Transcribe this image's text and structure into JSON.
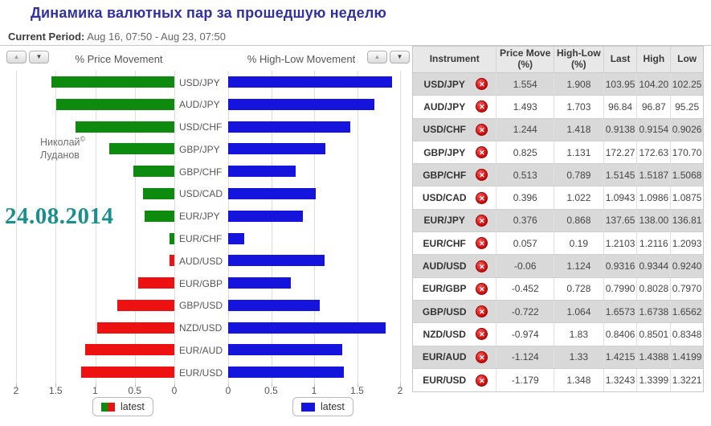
{
  "page": {
    "title": "Динамика валютных пар за прошедшую неделю",
    "period_label": "Current Period:",
    "period_value": "Aug 16, 07:50 - Aug 23, 07:50",
    "watermark_line1": "Николай",
    "watermark_sup": "©",
    "watermark_line2": "Луданов",
    "date_stamp": "24.08.2014"
  },
  "charts": {
    "left_title": "% Price Movement",
    "right_title": "% High-Low Movement",
    "left_legend_label": "latest",
    "right_legend_label": "latest",
    "up_arrow": "▲",
    "down_arrow": "▼",
    "colors": {
      "positive": "#0e8b0e",
      "negative": "#ee1111",
      "bar_blue": "#1414dc",
      "grid": "#dcdcdc",
      "title_blue": "#32329e",
      "date_teal": "#1b8e8e"
    },
    "left_axis_ticks": [
      "2",
      "1.5",
      "1",
      "0.5",
      "0"
    ],
    "right_axis_ticks": [
      "0",
      "0.5",
      "1",
      "1.5",
      "2"
    ]
  },
  "chart_data": [
    {
      "type": "bar",
      "orientation": "horizontal",
      "title": "% Price Movement",
      "categories": [
        "USD/JPY",
        "AUD/JPY",
        "USD/CHF",
        "GBP/JPY",
        "GBP/CHF",
        "USD/CAD",
        "EUR/JPY",
        "EUR/CHF",
        "AUD/USD",
        "EUR/GBP",
        "GBP/USD",
        "NZD/USD",
        "EUR/AUD",
        "EUR/USD"
      ],
      "values": [
        1.554,
        1.493,
        1.244,
        0.825,
        0.513,
        0.396,
        0.376,
        0.057,
        -0.06,
        -0.452,
        -0.722,
        -0.974,
        -1.124,
        -1.179
      ],
      "xlim": [
        2,
        0
      ],
      "axis_reversed": true,
      "grid": true,
      "legend": "latest",
      "color_rule": "green if positive, red if negative, bar length = absolute value"
    },
    {
      "type": "bar",
      "orientation": "horizontal",
      "title": "% High-Low Movement",
      "categories": [
        "USD/JPY",
        "AUD/JPY",
        "USD/CHF",
        "GBP/JPY",
        "GBP/CHF",
        "USD/CAD",
        "EUR/JPY",
        "EUR/CHF",
        "AUD/USD",
        "EUR/GBP",
        "GBP/USD",
        "NZD/USD",
        "EUR/AUD",
        "EUR/USD"
      ],
      "values": [
        1.908,
        1.703,
        1.418,
        1.131,
        0.789,
        1.022,
        0.868,
        0.19,
        1.124,
        0.728,
        1.064,
        1.83,
        1.33,
        1.348
      ],
      "xlim": [
        0,
        2
      ],
      "grid": true,
      "legend": "latest",
      "color": "#1414dc"
    }
  ],
  "table": {
    "headers": [
      "Instrument",
      "Price Move (%)",
      "High-Low (%)",
      "Last",
      "High",
      "Low"
    ],
    "rows": [
      {
        "instrument": "USD/JPY",
        "price_move": "1.554",
        "high_low": "1.908",
        "last": "103.95",
        "high": "104.20",
        "low": "102.25"
      },
      {
        "instrument": "AUD/JPY",
        "price_move": "1.493",
        "high_low": "1.703",
        "last": "96.84",
        "high": "96.87",
        "low": "95.25"
      },
      {
        "instrument": "USD/CHF",
        "price_move": "1.244",
        "high_low": "1.418",
        "last": "0.9138",
        "high": "0.9154",
        "low": "0.9026"
      },
      {
        "instrument": "GBP/JPY",
        "price_move": "0.825",
        "high_low": "1.131",
        "last": "172.27",
        "high": "172.63",
        "low": "170.70"
      },
      {
        "instrument": "GBP/CHF",
        "price_move": "0.513",
        "high_low": "0.789",
        "last": "1.5145",
        "high": "1.5187",
        "low": "1.5068"
      },
      {
        "instrument": "USD/CAD",
        "price_move": "0.396",
        "high_low": "1.022",
        "last": "1.0943",
        "high": "1.0986",
        "low": "1.0875"
      },
      {
        "instrument": "EUR/JPY",
        "price_move": "0.376",
        "high_low": "0.868",
        "last": "137.65",
        "high": "138.00",
        "low": "136.81"
      },
      {
        "instrument": "EUR/CHF",
        "price_move": "0.057",
        "high_low": "0.19",
        "last": "1.2103",
        "high": "1.2116",
        "low": "1.2093"
      },
      {
        "instrument": "AUD/USD",
        "price_move": "-0.06",
        "high_low": "1.124",
        "last": "0.9316",
        "high": "0.9344",
        "low": "0.9240"
      },
      {
        "instrument": "EUR/GBP",
        "price_move": "-0.452",
        "high_low": "0.728",
        "last": "0.7990",
        "high": "0.8028",
        "low": "0.7970"
      },
      {
        "instrument": "GBP/USD",
        "price_move": "-0.722",
        "high_low": "1.064",
        "last": "1.6573",
        "high": "1.6738",
        "low": "1.6562"
      },
      {
        "instrument": "NZD/USD",
        "price_move": "-0.974",
        "high_low": "1.83",
        "last": "0.8406",
        "high": "0.8501",
        "low": "0.8348"
      },
      {
        "instrument": "EUR/AUD",
        "price_move": "-1.124",
        "high_low": "1.33",
        "last": "1.4215",
        "high": "1.4388",
        "low": "1.4199"
      },
      {
        "instrument": "EUR/USD",
        "price_move": "-1.179",
        "high_low": "1.348",
        "last": "1.3243",
        "high": "1.3399",
        "low": "1.3221"
      }
    ],
    "remove_icon_glyph": "✕"
  }
}
